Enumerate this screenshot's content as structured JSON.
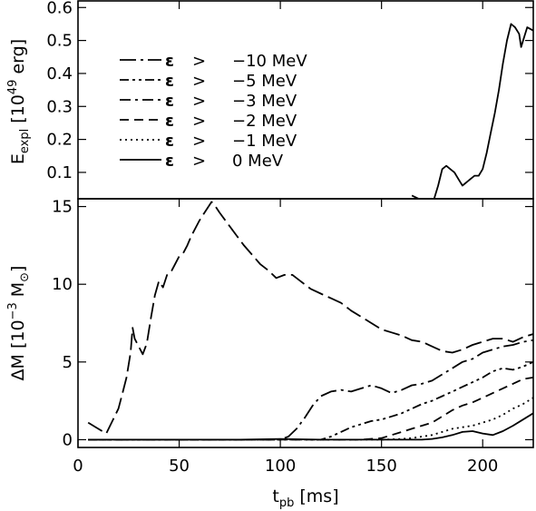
{
  "chart_data": [
    {
      "type": "line",
      "panel": "top",
      "ylabel": "E_expl [10^49 erg]",
      "xlim": [
        0,
        225
      ],
      "ylim": [
        0.02,
        0.62
      ],
      "yticks": [
        0.1,
        0.2,
        0.3,
        0.4,
        0.5,
        0.6
      ],
      "ytick_labels": [
        "0.1",
        "0.2",
        "0.3",
        "0.4",
        "0.5",
        "0.6"
      ],
      "legend": {
        "placement": "upper-left",
        "entries": [
          {
            "eps": "ε",
            "op": ">",
            "value": "−10 MeV",
            "dash": "long-dash-dot"
          },
          {
            "eps": "ε",
            "op": ">",
            "value": "−5 MeV",
            "dash": "dash-dot-dot"
          },
          {
            "eps": "ε",
            "op": ">",
            "value": "−3 MeV",
            "dash": "dash-dot"
          },
          {
            "eps": "ε",
            "op": ">",
            "value": "−2 MeV",
            "dash": "dashed"
          },
          {
            "eps": "ε",
            "op": ">",
            "value": "−1 MeV",
            "dash": "dotted"
          },
          {
            "eps": "ε",
            "op": ">",
            "value": "0 MeV",
            "dash": "solid"
          }
        ]
      },
      "series": [
        {
          "dash": "dashed",
          "x": [
            165,
            170,
            175
          ],
          "y": [
            0.03,
            0.015,
            0.01
          ]
        },
        {
          "dash": "solid",
          "x": [
            176,
            178,
            180,
            182,
            184,
            186,
            188,
            190,
            192,
            194,
            196,
            198,
            200,
            202,
            204,
            206,
            208,
            210,
            212,
            214,
            216,
            218,
            219,
            220,
            222,
            225
          ],
          "y": [
            0.02,
            0.06,
            0.11,
            0.12,
            0.11,
            0.1,
            0.08,
            0.06,
            0.07,
            0.08,
            0.09,
            0.09,
            0.11,
            0.16,
            0.22,
            0.28,
            0.35,
            0.43,
            0.5,
            0.55,
            0.54,
            0.52,
            0.48,
            0.5,
            0.54,
            0.53
          ]
        }
      ]
    },
    {
      "type": "line",
      "panel": "bottom",
      "xlabel": "t_pb [ms]",
      "ylabel": "ΔM [10^-3 M_sun]",
      "xlim": [
        0,
        225
      ],
      "ylim": [
        -0.5,
        15.5
      ],
      "xticks": [
        0,
        50,
        100,
        150,
        200
      ],
      "xtick_labels": [
        "0",
        "50",
        "100",
        "150",
        "200"
      ],
      "yticks": [
        0,
        5,
        10,
        15
      ],
      "ytick_labels": [
        "0",
        "5",
        "10",
        "15"
      ],
      "series": [
        {
          "dash": "long-dash",
          "x": [
            5,
            10,
            14,
            17,
            20,
            22,
            24,
            26,
            27,
            28,
            30,
            32,
            34,
            36,
            38,
            40,
            42,
            44,
            46,
            48,
            50,
            52,
            54,
            56,
            58,
            60,
            62,
            64,
            66,
            68,
            70,
            74,
            78,
            82,
            86,
            90,
            94,
            98,
            102,
            106,
            110,
            115,
            120,
            125,
            130,
            135,
            140,
            145,
            150,
            155,
            160,
            165,
            170,
            175,
            180,
            185,
            190,
            195,
            200,
            205,
            210,
            215,
            220,
            225
          ],
          "y": [
            1.1,
            0.7,
            0.4,
            1.2,
            2.0,
            3.0,
            4.0,
            5.6,
            7.2,
            6.5,
            6.0,
            5.5,
            6.2,
            7.8,
            9.3,
            10.2,
            9.8,
            10.6,
            10.8,
            11.3,
            11.8,
            12.0,
            12.5,
            13.1,
            13.6,
            14.1,
            14.5,
            14.9,
            15.3,
            15.0,
            14.6,
            13.9,
            13.2,
            12.5,
            11.9,
            11.3,
            10.9,
            10.4,
            10.6,
            10.6,
            10.2,
            9.7,
            9.4,
            9.1,
            8.8,
            8.3,
            7.9,
            7.5,
            7.1,
            6.9,
            6.7,
            6.4,
            6.3,
            6.0,
            5.7,
            5.6,
            5.8,
            6.1,
            6.3,
            6.5,
            6.5,
            6.3,
            6.6,
            6.8
          ]
        },
        {
          "dash": "long-dash-dot",
          "x": [
            5,
            20,
            40,
            60,
            80,
            100,
            104,
            108,
            112,
            116,
            120,
            125,
            130,
            135,
            140,
            145,
            150,
            155,
            160,
            165,
            170,
            175,
            180,
            185,
            190,
            195,
            200,
            205,
            210,
            215,
            220,
            225
          ],
          "y": [
            0,
            0,
            0,
            0,
            0,
            0,
            0.2,
            0.7,
            1.4,
            2.2,
            2.8,
            3.1,
            3.2,
            3.1,
            3.3,
            3.5,
            3.3,
            3.0,
            3.2,
            3.5,
            3.6,
            3.8,
            4.2,
            4.6,
            5.0,
            5.2,
            5.6,
            5.8,
            6.0,
            6.1,
            6.3,
            6.4
          ]
        },
        {
          "dash": "dash-dot-dot",
          "x": [
            5,
            40,
            80,
            120,
            125,
            130,
            135,
            140,
            145,
            150,
            155,
            160,
            165,
            170,
            175,
            180,
            185,
            190,
            195,
            200,
            205,
            210,
            215,
            220,
            225
          ],
          "y": [
            0,
            0,
            0,
            0,
            0.2,
            0.5,
            0.8,
            1.0,
            1.2,
            1.3,
            1.5,
            1.7,
            2.0,
            2.3,
            2.5,
            2.8,
            3.1,
            3.4,
            3.7,
            4.0,
            4.4,
            4.6,
            4.5,
            4.7,
            5.0
          ]
        },
        {
          "dash": "dashed",
          "x": [
            5,
            40,
            80,
            120,
            140,
            150,
            155,
            160,
            165,
            170,
            175,
            180,
            185,
            190,
            195,
            200,
            205,
            210,
            215,
            220,
            225
          ],
          "y": [
            0,
            0,
            0,
            0,
            0,
            0.1,
            0.3,
            0.5,
            0.7,
            0.9,
            1.1,
            1.5,
            1.9,
            2.2,
            2.4,
            2.7,
            3.0,
            3.3,
            3.6,
            3.9,
            4.0
          ]
        },
        {
          "dash": "dotted",
          "x": [
            5,
            40,
            80,
            120,
            150,
            160,
            165,
            170,
            175,
            180,
            185,
            190,
            195,
            200,
            205,
            210,
            215,
            220,
            225
          ],
          "y": [
            0,
            0,
            0,
            0,
            0,
            0.05,
            0.1,
            0.2,
            0.3,
            0.5,
            0.7,
            0.8,
            0.9,
            1.1,
            1.3,
            1.6,
            2.0,
            2.3,
            2.7
          ]
        },
        {
          "dash": "solid",
          "x": [
            5,
            40,
            80,
            100,
            120,
            150,
            170,
            175,
            180,
            185,
            190,
            195,
            200,
            205,
            210,
            215,
            220,
            225
          ],
          "y": [
            0,
            0,
            0,
            0.05,
            0,
            0,
            0,
            0.05,
            0.15,
            0.3,
            0.5,
            0.55,
            0.4,
            0.3,
            0.55,
            0.9,
            1.3,
            1.7
          ]
        }
      ]
    }
  ]
}
